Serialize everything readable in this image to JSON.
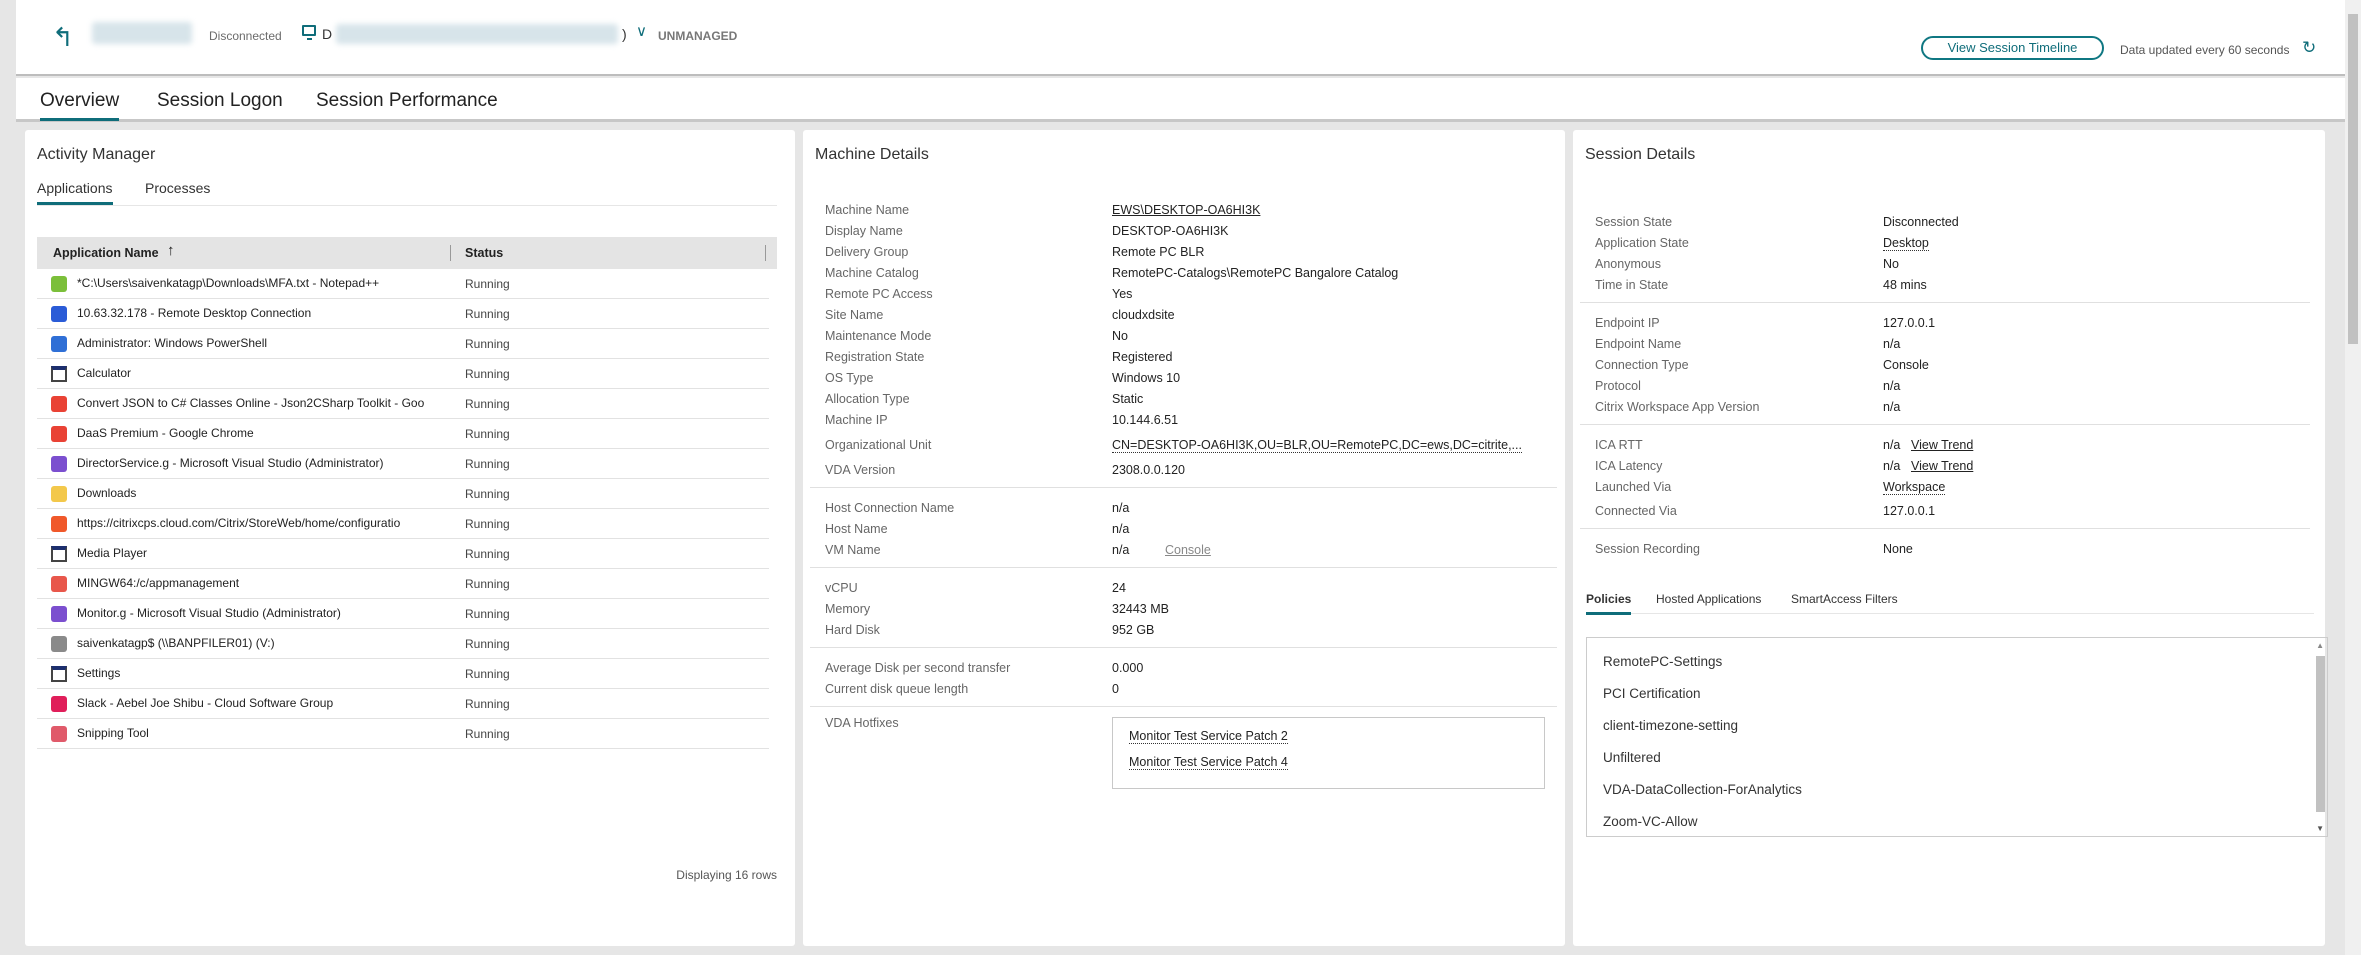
{
  "header": {
    "status": "Disconnected",
    "machine_prefix": "D",
    "machine_suffix": ")",
    "managed": "UNMANAGED",
    "timeline_button": "View Session Timeline",
    "updated_text": "Data updated every 60 seconds"
  },
  "tabs": [
    "Overview",
    "Session Logon",
    "Session Performance"
  ],
  "activity": {
    "title": "Activity Manager",
    "tabs": [
      "Applications",
      "Processes"
    ],
    "columns": [
      "Application Name",
      "Status"
    ],
    "rows": [
      {
        "name": "*C:\\Users\\saivenkatagp\\Downloads\\MFA.txt - Notepad++",
        "status": "Running",
        "icon": "notepad-plus-plus-icon",
        "color": "#7bbf3a"
      },
      {
        "name": "10.63.32.178 - Remote Desktop Connection",
        "status": "Running",
        "icon": "remote-desktop-icon",
        "color": "#2a5bd7"
      },
      {
        "name": "Administrator: Windows PowerShell",
        "status": "Running",
        "icon": "powershell-icon",
        "color": "#2f6fd6"
      },
      {
        "name": "Calculator",
        "status": "Running",
        "icon": "window-icon",
        "color": "#ffffff"
      },
      {
        "name": "Convert JSON to C# Classes Online - Json2CSharp Toolkit - Goo",
        "status": "Running",
        "icon": "chrome-icon",
        "color": "#e94235"
      },
      {
        "name": "DaaS Premium - Google Chrome",
        "status": "Running",
        "icon": "chrome-icon",
        "color": "#e94235"
      },
      {
        "name": "DirectorService.g - Microsoft Visual Studio (Administrator)",
        "status": "Running",
        "icon": "visual-studio-icon",
        "color": "#7b4fcf"
      },
      {
        "name": "Downloads",
        "status": "Running",
        "icon": "downloads-folder-icon",
        "color": "#f3c84b"
      },
      {
        "name": "https://citrixcps.cloud.com/Citrix/StoreWeb/home/configuratio",
        "status": "Running",
        "icon": "browser-icon",
        "color": "#f0582a"
      },
      {
        "name": "Media Player",
        "status": "Running",
        "icon": "window-icon",
        "color": "#ffffff"
      },
      {
        "name": "MINGW64:/c/appmanagement",
        "status": "Running",
        "icon": "git-icon",
        "color": "#e8574b"
      },
      {
        "name": "Monitor.g - Microsoft Visual Studio (Administrator)",
        "status": "Running",
        "icon": "visual-studio-icon",
        "color": "#7b4fcf"
      },
      {
        "name": "saivenkatagp$ (\\\\BANPFILER01) (V:)",
        "status": "Running",
        "icon": "network-drive-icon",
        "color": "#8a8a8a"
      },
      {
        "name": "Settings",
        "status": "Running",
        "icon": "window-icon",
        "color": "#ffffff"
      },
      {
        "name": "Slack - Aebel Joe Shibu - Cloud Software Group",
        "status": "Running",
        "icon": "slack-icon",
        "color": "#e01e5a"
      },
      {
        "name": "Snipping Tool",
        "status": "Running",
        "icon": "snipping-tool-icon",
        "color": "#e05a6a"
      }
    ],
    "footer": "Displaying 16 rows"
  },
  "machine": {
    "title": "Machine Details",
    "groups": [
      [
        [
          "Machine Name",
          "EWS\\DESKTOP-OA6HI3K",
          "link"
        ],
        [
          "Display Name",
          "DESKTOP-OA6HI3K"
        ],
        [
          "Delivery Group",
          "Remote PC BLR"
        ],
        [
          "Machine Catalog",
          "RemotePC-Catalogs\\RemotePC Bangalore Catalog"
        ],
        [
          "Remote PC Access",
          "Yes"
        ],
        [
          "Site Name",
          "cloudxdsite"
        ],
        [
          "Maintenance Mode",
          "No"
        ],
        [
          "Registration State",
          "Registered"
        ],
        [
          "OS Type",
          "Windows 10"
        ],
        [
          "Allocation Type",
          "Static"
        ],
        [
          "Machine IP",
          "10.144.6.51"
        ],
        [
          "Organizational Unit",
          "CN=DESKTOP-OA6HI3K,OU=BLR,OU=RemotePC,DC=ews,DC=citrite,...",
          "dotted"
        ],
        [
          "VDA Version",
          "2308.0.0.120"
        ]
      ],
      [
        [
          "Host Connection Name",
          "n/a"
        ],
        [
          "Host Name",
          "n/a"
        ],
        [
          "VM Name",
          "n/a"
        ]
      ],
      [
        [
          "vCPU",
          "24"
        ],
        [
          "Memory",
          "32443 MB"
        ],
        [
          "Hard Disk",
          "952 GB"
        ]
      ],
      [
        [
          "Average Disk per second transfer",
          "0.000"
        ],
        [
          "Current disk queue length",
          "0"
        ]
      ]
    ],
    "console_link": "Console",
    "hotfix_label": "VDA Hotfixes",
    "hotfixes": [
      "Monitor Test Service Patch 2",
      "Monitor Test Service Patch 4"
    ]
  },
  "session": {
    "title": "Session Details",
    "groups": [
      [
        [
          "Session State",
          "Disconnected"
        ],
        [
          "Application State",
          "Desktop",
          "dotted"
        ],
        [
          "Anonymous",
          "No"
        ],
        [
          "Time in State",
          "48 mins"
        ]
      ],
      [
        [
          "Endpoint IP",
          "127.0.0.1"
        ],
        [
          "Endpoint Name",
          "n/a"
        ],
        [
          "Connection Type",
          "Console"
        ],
        [
          "Protocol",
          "n/a"
        ],
        [
          "Citrix Workspace App Version",
          "n/a"
        ]
      ],
      [
        [
          "ICA RTT",
          "n/a",
          "trend"
        ],
        [
          "ICA Latency",
          "n/a",
          "trend"
        ],
        [
          "Launched Via",
          "Workspace",
          "dotted"
        ],
        [
          "Connected Via",
          "127.0.0.1"
        ]
      ],
      [
        [
          "Session Recording",
          "None"
        ]
      ]
    ],
    "trend_link": "View Trend",
    "policy_tabs": [
      "Policies",
      "Hosted Applications",
      "SmartAccess Filters"
    ],
    "policies": [
      "RemotePC-Settings",
      "PCI Certification",
      "client-timezone-setting",
      "Unfiltered",
      "VDA-DataCollection-ForAnalytics",
      "Zoom-VC-Allow"
    ]
  },
  "colors": {
    "accent": "#0f6d7a"
  }
}
